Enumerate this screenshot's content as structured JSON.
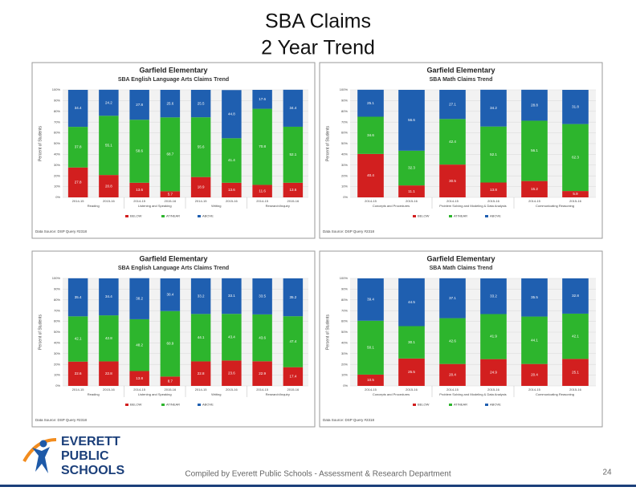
{
  "header": {
    "title_lines": [
      "SBA Claims",
      "2 Year Trend"
    ]
  },
  "footer": {
    "credit": "Compiled by Everett Public Schools - Assessment & Research Department",
    "page_number": "24",
    "logo_lines": [
      "EVERETT",
      "PUBLIC",
      "SCHOOLS"
    ]
  },
  "chart_data": [
    {
      "type": "bar",
      "stacked": true,
      "title": "Garfield Elementary",
      "subtitle": "SBA English Language Arts Claims Trend",
      "ylabel": "Percent of Students",
      "source": "Data Source: DSP Query #2318",
      "categories": [
        "2014-15",
        "2015-16",
        "2014-15",
        "2015-16",
        "2014-15",
        "2015-16",
        "2014-15",
        "2015-16"
      ],
      "groups": [
        "Reading",
        "Listening and Speaking",
        "Writing",
        "Research/Inquiry"
      ],
      "ylim": [
        0,
        100
      ],
      "yticks": [
        {
          "value": 0,
          "label": "0%"
        },
        {
          "value": 10,
          "label": "10%"
        },
        {
          "value": 20,
          "label": "20%"
        },
        {
          "value": 30,
          "label": "30%"
        },
        {
          "value": 40,
          "label": "40%"
        },
        {
          "value": 50,
          "label": "50%"
        },
        {
          "value": 60,
          "label": "60%"
        },
        {
          "value": 70,
          "label": "70%"
        },
        {
          "value": 80,
          "label": "80%"
        },
        {
          "value": 90,
          "label": "90%"
        },
        {
          "value": 100,
          "label": "100%"
        }
      ],
      "series": [
        {
          "name": "BELOW",
          "color": "#d21f1f",
          "values": [
            27.8,
            20.8,
            13.6,
            5.7,
            18.9,
            13.6,
            11.6,
            13.6
          ]
        },
        {
          "name": "AT/NEAR",
          "color": "#2db52d",
          "values": [
            37.8,
            55.1,
            58.6,
            68.7,
            55.6,
            41.4,
            70.8,
            52.1
          ]
        },
        {
          "name": "ABOVE",
          "color": "#1f5fb0",
          "values": [
            34.4,
            24.2,
            27.8,
            25.6,
            25.5,
            44.8,
            17.6,
            34.4
          ]
        }
      ]
    },
    {
      "type": "bar",
      "stacked": true,
      "title": "Garfield Elementary",
      "subtitle": "SBA Math Claims Trend",
      "ylabel": "Percent of Students",
      "source": "Data Source: DSP Query #2318",
      "categories": [
        "2014-15",
        "2015-16",
        "2014-15",
        "2015-16",
        "2014-15",
        "2015-16"
      ],
      "groups": [
        "Concepts and Procedures",
        "Problem Solving and Modeling & Data Analysis",
        "Communicating Reasoning"
      ],
      "ylim": [
        0,
        100
      ],
      "yticks": [
        {
          "value": 0,
          "label": "0%"
        },
        {
          "value": 10,
          "label": "10%"
        },
        {
          "value": 20,
          "label": "20%"
        },
        {
          "value": 30,
          "label": "30%"
        },
        {
          "value": 40,
          "label": "40%"
        },
        {
          "value": 50,
          "label": "50%"
        },
        {
          "value": 60,
          "label": "60%"
        },
        {
          "value": 70,
          "label": "70%"
        },
        {
          "value": 80,
          "label": "80%"
        },
        {
          "value": 90,
          "label": "90%"
        },
        {
          "value": 100,
          "label": "100%"
        }
      ],
      "series": [
        {
          "name": "BELOW",
          "color": "#d21f1f",
          "values": [
            40.4,
            11.1,
            30.5,
            13.8,
            15.2,
            5.9
          ]
        },
        {
          "name": "AT/NEAR",
          "color": "#2db52d",
          "values": [
            34.6,
            32.3,
            42.4,
            52.1,
            56.1,
            62.3
          ]
        },
        {
          "name": "ABOVE",
          "color": "#1f5fb0",
          "values": [
            25.1,
            56.6,
            27.1,
            34.2,
            28.8,
            31.8
          ]
        }
      ]
    },
    {
      "type": "bar",
      "stacked": true,
      "title": "Garfield Elementary",
      "subtitle": "SBA English Language Arts Claims Trend",
      "ylabel": "Percent of Students",
      "source": "Data Source: DSP Query #2318",
      "categories": [
        "2014-15",
        "2015-16",
        "2014-15",
        "2015-16",
        "2014-15",
        "2015-16",
        "2014-15",
        "2015-16"
      ],
      "groups": [
        "Reading",
        "Listening and Speaking",
        "Writing",
        "Research/Inquiry"
      ],
      "ylim": [
        0,
        100
      ],
      "yticks": [
        {
          "value": 0,
          "label": "0%"
        },
        {
          "value": 10,
          "label": "10%"
        },
        {
          "value": 20,
          "label": "20%"
        },
        {
          "value": 30,
          "label": "30%"
        },
        {
          "value": 40,
          "label": "40%"
        },
        {
          "value": 50,
          "label": "50%"
        },
        {
          "value": 60,
          "label": "60%"
        },
        {
          "value": 70,
          "label": "70%"
        },
        {
          "value": 80,
          "label": "80%"
        },
        {
          "value": 90,
          "label": "90%"
        },
        {
          "value": 100,
          "label": "100%"
        }
      ],
      "series": [
        {
          "name": "BELOW",
          "color": "#d21f1f",
          "values": [
            22.6,
            22.8,
            13.8,
            8.7,
            22.8,
            23.6,
            22.9,
            17.4
          ]
        },
        {
          "name": "AT/NEAR",
          "color": "#2db52d",
          "values": [
            42.1,
            42.8,
            48.2,
            60.9,
            44.1,
            43.4,
            43.6,
            47.4
          ]
        },
        {
          "name": "ABOVE",
          "color": "#1f5fb0",
          "values": [
            35.4,
            34.4,
            38.2,
            30.4,
            33.2,
            33.1,
            33.5,
            35.2
          ]
        }
      ]
    },
    {
      "type": "bar",
      "stacked": true,
      "title": "Garfield Elementary",
      "subtitle": "SBA Math Claims Trend",
      "ylabel": "Percent of Students",
      "source": "Data Source: DSP Query #2318",
      "categories": [
        "2014-15",
        "2015-16",
        "2014-15",
        "2015-16",
        "2014-15",
        "2015-16"
      ],
      "groups": [
        "Concepts and Procedures",
        "Problem Solving and Modeling & Data Analysis",
        "Communicating Reasoning"
      ],
      "ylim": [
        0,
        100
      ],
      "yticks": [
        {
          "value": 0,
          "label": "0%"
        },
        {
          "value": 10,
          "label": "10%"
        },
        {
          "value": 20,
          "label": "20%"
        },
        {
          "value": 30,
          "label": "30%"
        },
        {
          "value": 40,
          "label": "40%"
        },
        {
          "value": 50,
          "label": "50%"
        },
        {
          "value": 60,
          "label": "60%"
        },
        {
          "value": 70,
          "label": "70%"
        },
        {
          "value": 80,
          "label": "80%"
        },
        {
          "value": 90,
          "label": "90%"
        },
        {
          "value": 100,
          "label": "100%"
        }
      ],
      "series": [
        {
          "name": "BELOW",
          "color": "#d21f1f",
          "values": [
            10.5,
            25.5,
            20.4,
            24.9,
            20.4,
            25.1
          ]
        },
        {
          "name": "AT/NEAR",
          "color": "#2db52d",
          "values": [
            50.1,
            30.1,
            42.6,
            41.9,
            44.1,
            42.1
          ]
        },
        {
          "name": "ABOVE",
          "color": "#1f5fb0",
          "values": [
            39.4,
            44.5,
            37.1,
            33.2,
            35.5,
            32.8
          ]
        }
      ]
    }
  ]
}
